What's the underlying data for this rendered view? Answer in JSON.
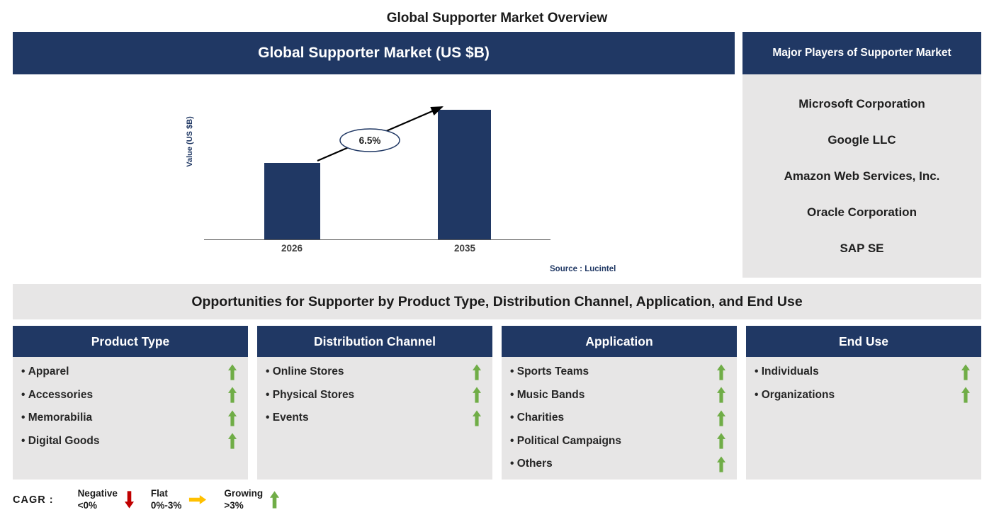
{
  "title": "Global Supporter Market Overview",
  "chart_panel": {
    "header": "Global Supporter Market (US $B)",
    "source": "Source : Lucintel"
  },
  "chart_data": {
    "type": "bar",
    "title": "Global Supporter Market (US $B)",
    "categories": [
      "2026",
      "2035"
    ],
    "values": [
      100,
      170
    ],
    "values_note": "bar values are not labeled in the figure; relative heights estimated from pixels",
    "xlabel": "",
    "ylabel": "Value (US $B)",
    "ylim": [
      0,
      216
    ],
    "grid": false,
    "legend_position": "none",
    "annotation": "6.5%",
    "bar_color": "#203864",
    "source": "Source : Lucintel"
  },
  "major_players": {
    "header": "Major Players of Supporter Market",
    "items": [
      "Microsoft Corporation",
      "Google LLC",
      "Amazon Web Services, Inc.",
      "Oracle Corporation",
      "SAP SE"
    ]
  },
  "opportunities": {
    "title": "Opportunities for Supporter by Product Type, Distribution Channel, Application, and End Use",
    "columns": [
      {
        "header": "Product Type",
        "items": [
          {
            "label": "Apparel",
            "trend": "growing"
          },
          {
            "label": "Accessories",
            "trend": "growing"
          },
          {
            "label": "Memorabilia",
            "trend": "growing"
          },
          {
            "label": "Digital Goods",
            "trend": "growing"
          }
        ]
      },
      {
        "header": "Distribution Channel",
        "items": [
          {
            "label": "Online Stores",
            "trend": "growing"
          },
          {
            "label": "Physical Stores",
            "trend": "growing"
          },
          {
            "label": "Events",
            "trend": "growing"
          }
        ]
      },
      {
        "header": "Application",
        "items": [
          {
            "label": "Sports Teams",
            "trend": "growing"
          },
          {
            "label": "Music Bands",
            "trend": "growing"
          },
          {
            "label": "Charities",
            "trend": "growing"
          },
          {
            "label": "Political Campaigns",
            "trend": "growing"
          },
          {
            "label": "Others",
            "trend": "growing"
          }
        ]
      },
      {
        "header": "End Use",
        "items": [
          {
            "label": "Individuals",
            "trend": "growing"
          },
          {
            "label": "Organizations",
            "trend": "growing"
          }
        ]
      }
    ]
  },
  "legend": {
    "label": "CAGR :",
    "items": [
      {
        "label": "Negative",
        "range": "<0%",
        "direction": "down",
        "color": "#C00000"
      },
      {
        "label": "Flat",
        "range": "0%-3%",
        "direction": "right",
        "color": "#FFC000"
      },
      {
        "label": "Growing",
        "range": ">3%",
        "direction": "up",
        "color": "#70AD47"
      }
    ]
  },
  "colors": {
    "navy": "#203864",
    "panel_bg": "#E7E6E6",
    "growing": "#70AD47",
    "negative": "#C00000",
    "flat": "#FFC000"
  }
}
